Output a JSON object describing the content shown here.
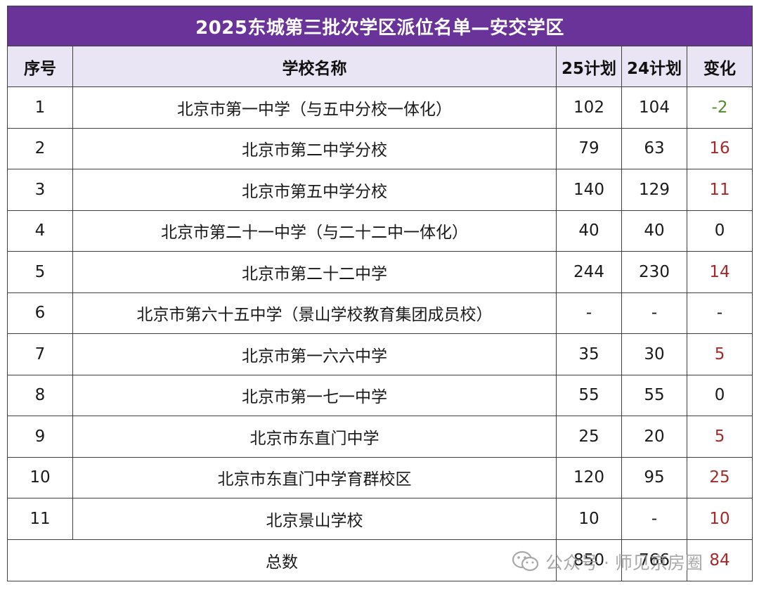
{
  "title": "2025东城第三批次学区派位名单—安交学区",
  "headers": {
    "index": "序号",
    "school": "学校名称",
    "plan25": "25计划",
    "plan24": "24计划",
    "change": "变化"
  },
  "rows": [
    {
      "index": "1",
      "school": "北京市第一中学（与五中分校一体化）",
      "plan25": "102",
      "plan24": "104",
      "change": "-2",
      "trend": "neg"
    },
    {
      "index": "2",
      "school": "北京市第二中学分校",
      "plan25": "79",
      "plan24": "63",
      "change": "16",
      "trend": "pos"
    },
    {
      "index": "3",
      "school": "北京市第五中学分校",
      "plan25": "140",
      "plan24": "129",
      "change": "11",
      "trend": "pos"
    },
    {
      "index": "4",
      "school": "北京市第二十一中学（与二十二中一体化）",
      "plan25": "40",
      "plan24": "40",
      "change": "0",
      "trend": "neutral"
    },
    {
      "index": "5",
      "school": "北京市第二十二中学",
      "plan25": "244",
      "plan24": "230",
      "change": "14",
      "trend": "pos"
    },
    {
      "index": "6",
      "school": "北京市第六十五中学（景山学校教育集团成员校）",
      "plan25": "-",
      "plan24": "-",
      "change": "-",
      "trend": "neutral"
    },
    {
      "index": "7",
      "school": "北京市第一六六中学",
      "plan25": "35",
      "plan24": "30",
      "change": "5",
      "trend": "pos"
    },
    {
      "index": "8",
      "school": "北京市第一七一中学",
      "plan25": "55",
      "plan24": "55",
      "change": "0",
      "trend": "neutral"
    },
    {
      "index": "9",
      "school": "北京市东直门中学",
      "plan25": "25",
      "plan24": "20",
      "change": "5",
      "trend": "pos"
    },
    {
      "index": "10",
      "school": "北京市东直门中学育群校区",
      "plan25": "120",
      "plan24": "95",
      "change": "25",
      "trend": "pos"
    },
    {
      "index": "11",
      "school": "北京景山学校",
      "plan25": "10",
      "plan24": "-",
      "change": "10",
      "trend": "pos"
    }
  ],
  "total": {
    "label": "总数",
    "plan25": "850",
    "plan24": "766",
    "change": "84"
  },
  "watermark": {
    "text": "公众号 · 师见京房圈",
    "icon": "wechat-icon"
  },
  "colors": {
    "title_bg": "#6a3399",
    "header_bg": "#eae5f4",
    "negative": "#4f8a2b",
    "positive": "#a32a2a"
  }
}
